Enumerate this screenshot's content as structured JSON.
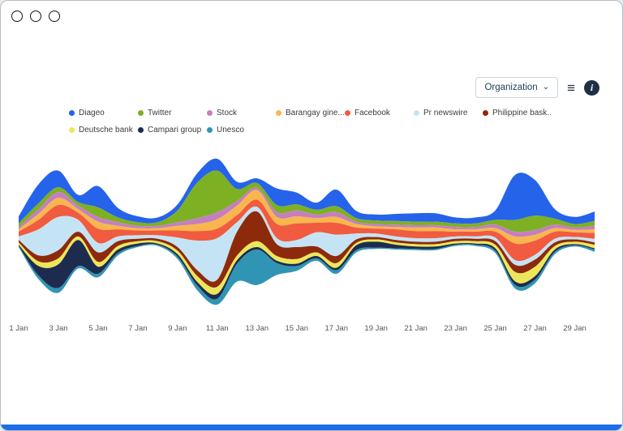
{
  "toolbar": {
    "organization_label": "Organization",
    "caret_icon": "⌄",
    "list_icon": "≡",
    "info_icon": "i"
  },
  "legend": [
    {
      "label": "Diageo",
      "color": "#2563eb"
    },
    {
      "label": "Twitter",
      "color": "#7db022"
    },
    {
      "label": "Stock",
      "color": "#c47fc0"
    },
    {
      "label": "Barangay gine...",
      "color": "#f9b64d"
    },
    {
      "label": "Facebook",
      "color": "#f15b40"
    },
    {
      "label": "Pr newswire",
      "color": "#c4e4f5"
    },
    {
      "label": "Philippine bask...",
      "color": "#8e2a0c"
    },
    {
      "label": "Deutsche bank",
      "color": "#ece75a"
    },
    {
      "label": "Campari group",
      "color": "#1d2c4e"
    },
    {
      "label": "Unesco",
      "color": "#3095b4"
    }
  ],
  "chart_data": {
    "type": "area",
    "variant": "streamgraph",
    "title": "",
    "xlabel": "",
    "ylabel": "",
    "x": [
      1,
      2,
      3,
      4,
      5,
      6,
      7,
      8,
      9,
      10,
      11,
      12,
      13,
      14,
      15,
      16,
      17,
      18,
      19,
      20,
      21,
      22,
      23,
      24,
      25,
      26,
      27,
      28,
      29,
      30
    ],
    "x_unit": "Jan",
    "tick_labels": [
      "1 Jan",
      "3 Jan",
      "5 Jan",
      "7 Jan",
      "9 Jan",
      "11 Jan",
      "13 Jan",
      "15 Jan",
      "17 Jan",
      "19 Jan",
      "21 Jan",
      "23 Jan",
      "25 Jan",
      "27 Jan",
      "29 Jan"
    ],
    "legend_position": "top",
    "grid": false,
    "series": [
      {
        "name": "Diageo",
        "color": "#2563eb",
        "values": [
          6,
          16,
          14,
          6,
          18,
          8,
          5,
          4,
          5,
          8,
          10,
          6,
          4,
          14,
          10,
          6,
          14,
          6,
          5,
          6,
          7,
          7,
          5,
          5,
          8,
          38,
          30,
          8,
          6,
          8
        ]
      },
      {
        "name": "Twitter",
        "color": "#7db022",
        "values": [
          3,
          5,
          4,
          3,
          8,
          4,
          3,
          3,
          10,
          30,
          35,
          10,
          4,
          6,
          5,
          4,
          5,
          3,
          3,
          3,
          3,
          3,
          3,
          3,
          4,
          10,
          12,
          5,
          3,
          4
        ]
      },
      {
        "name": "Stock",
        "color": "#c47fc0",
        "values": [
          2,
          4,
          5,
          3,
          4,
          3,
          2,
          2,
          3,
          5,
          6,
          4,
          2,
          4,
          5,
          3,
          4,
          2,
          2,
          2,
          2,
          2,
          2,
          2,
          3,
          4,
          4,
          3,
          2,
          3
        ]
      },
      {
        "name": "Barangay gine...",
        "color": "#f9b64d",
        "values": [
          2,
          5,
          6,
          3,
          6,
          3,
          2,
          2,
          4,
          6,
          8,
          8,
          8,
          6,
          6,
          4,
          5,
          3,
          2,
          2,
          3,
          3,
          2,
          2,
          3,
          6,
          5,
          3,
          2,
          3
        ]
      },
      {
        "name": "Facebook",
        "color": "#f15b40",
        "values": [
          4,
          8,
          10,
          6,
          12,
          6,
          4,
          4,
          6,
          8,
          8,
          6,
          6,
          12,
          14,
          8,
          10,
          5,
          4,
          6,
          6,
          6,
          4,
          4,
          5,
          14,
          12,
          6,
          4,
          5
        ]
      },
      {
        "name": "Pr newswire",
        "color": "#c4e4f5",
        "values": [
          3,
          22,
          28,
          10,
          8,
          4,
          3,
          3,
          8,
          25,
          35,
          8,
          4,
          5,
          6,
          12,
          18,
          5,
          3,
          3,
          3,
          3,
          2,
          2,
          3,
          4,
          4,
          3,
          2,
          3
        ]
      },
      {
        "name": "Philippine bask...",
        "color": "#8e2a0c",
        "values": [
          2,
          5,
          7,
          4,
          8,
          4,
          2,
          2,
          3,
          5,
          6,
          20,
          25,
          10,
          10,
          5,
          6,
          3,
          2,
          2,
          2,
          2,
          2,
          2,
          3,
          6,
          6,
          3,
          2,
          2
        ]
      },
      {
        "name": "Deutsche bank",
        "color": "#ece75a",
        "values": [
          2,
          4,
          5,
          3,
          4,
          3,
          2,
          2,
          3,
          5,
          6,
          4,
          5,
          4,
          4,
          3,
          4,
          2,
          2,
          2,
          2,
          2,
          2,
          2,
          3,
          8,
          8,
          3,
          2,
          3
        ]
      },
      {
        "name": "Campari group",
        "color": "#1d2c4e",
        "values": [
          1,
          8,
          20,
          22,
          6,
          3,
          2,
          1,
          2,
          3,
          4,
          3,
          2,
          2,
          2,
          2,
          2,
          4,
          5,
          3,
          2,
          2,
          1,
          1,
          2,
          3,
          3,
          2,
          1,
          1
        ]
      },
      {
        "name": "Unesco",
        "color": "#3095b4",
        "values": [
          1,
          3,
          4,
          2,
          3,
          2,
          1,
          1,
          2,
          4,
          5,
          15,
          30,
          10,
          4,
          2,
          3,
          2,
          1,
          1,
          1,
          1,
          1,
          1,
          2,
          3,
          3,
          2,
          1,
          2
        ]
      }
    ]
  },
  "footer": {
    "color": "#1e6ee8"
  }
}
